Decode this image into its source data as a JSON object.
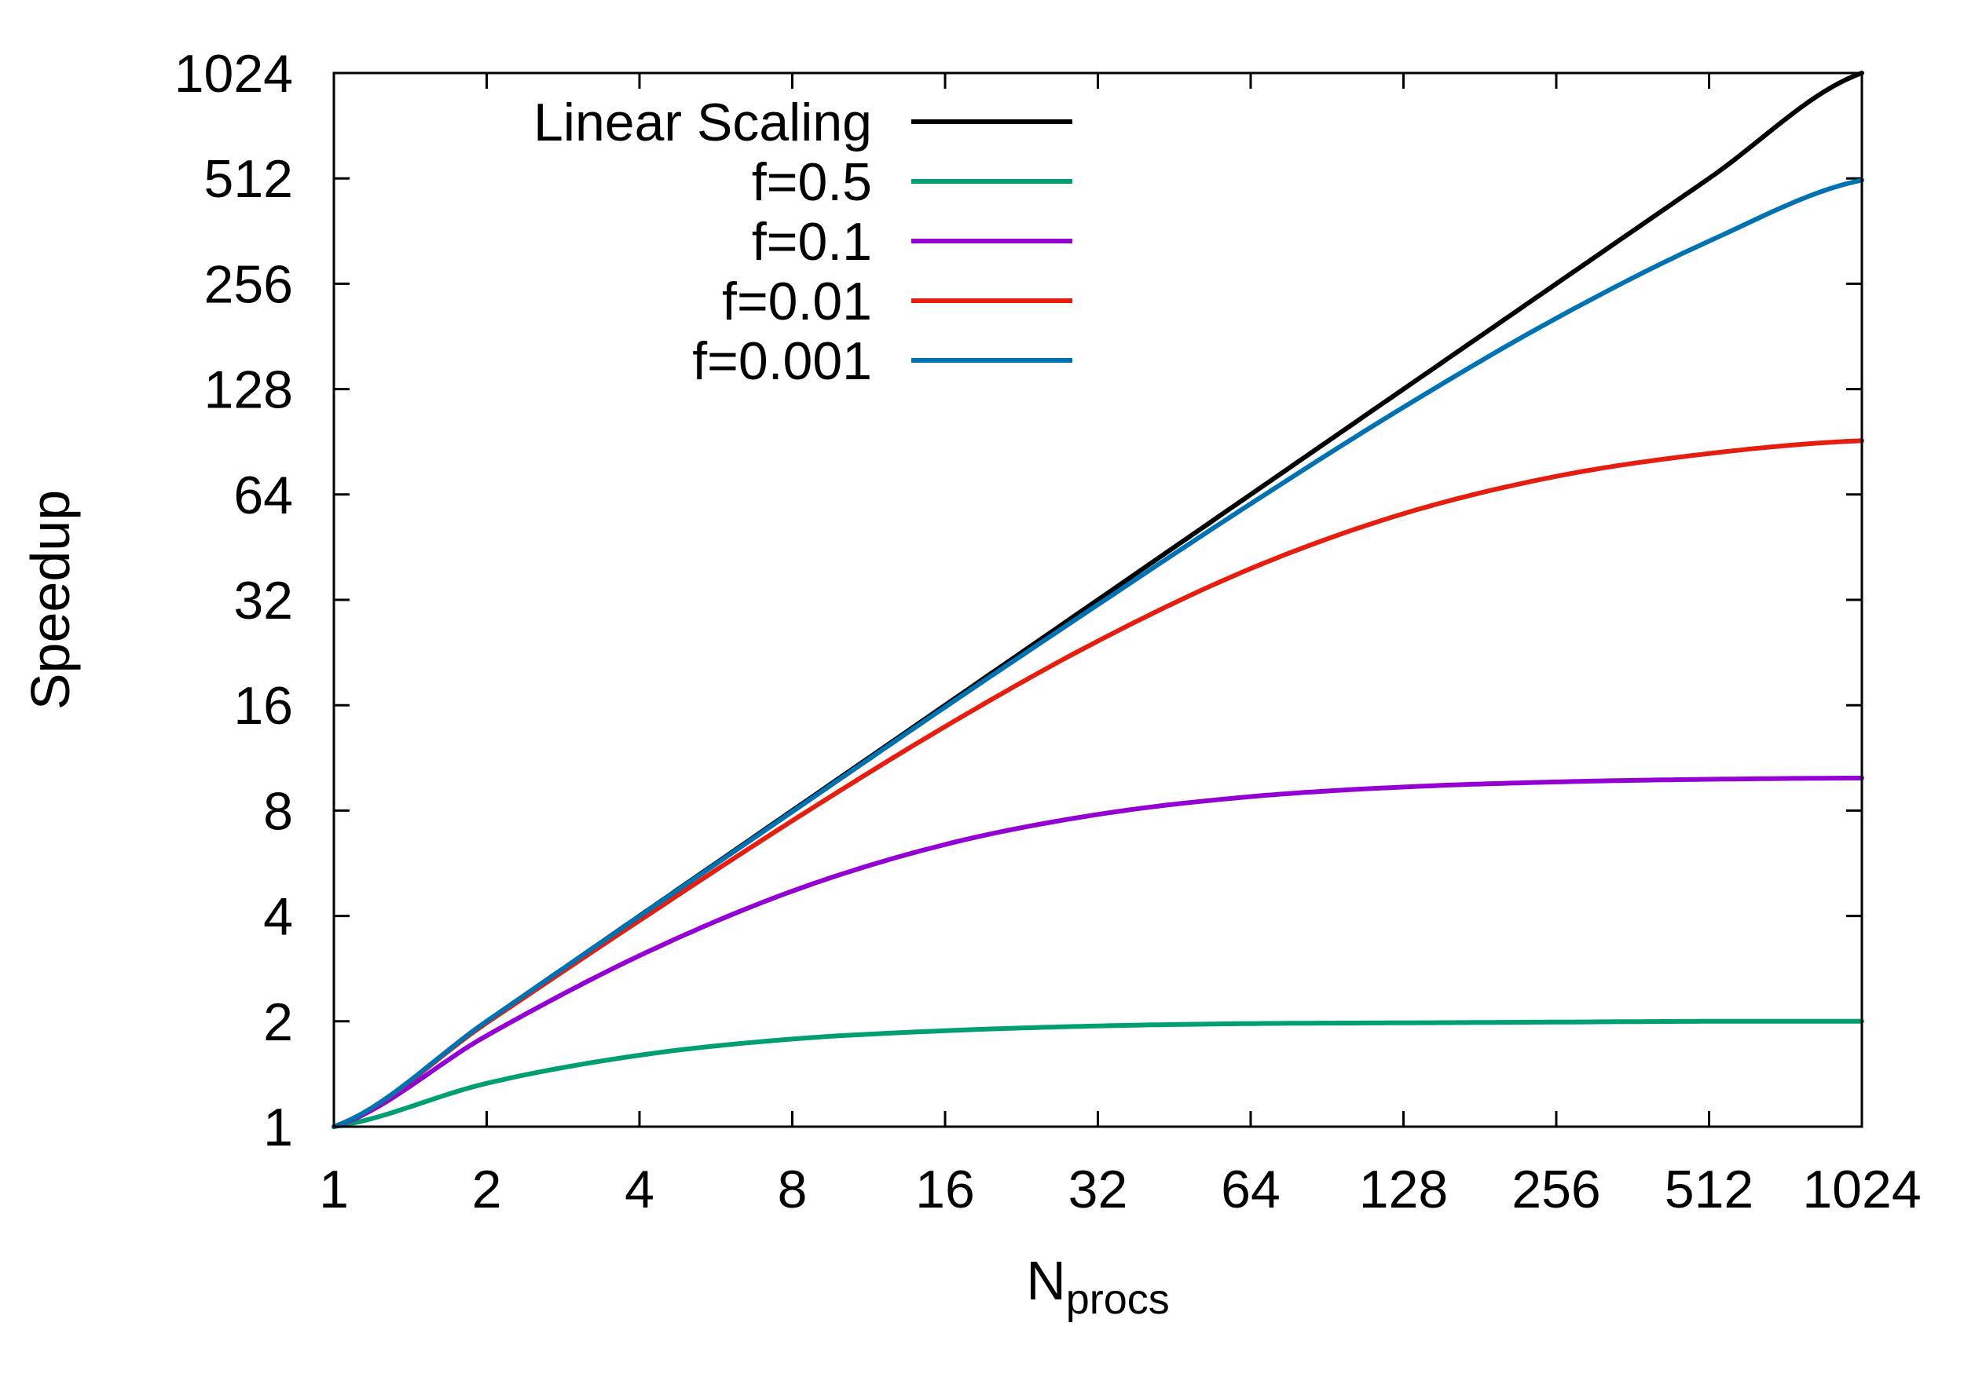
{
  "chart_data": {
    "type": "line",
    "title": "",
    "xlabel": "N",
    "xlabel_subscript": "procs",
    "ylabel": "Speedup",
    "xscale": "log2",
    "yscale": "log2",
    "xlim": [
      1,
      1024
    ],
    "ylim": [
      1,
      1024
    ],
    "xticks": [
      "1",
      "2",
      "4",
      "8",
      "16",
      "32",
      "64",
      "128",
      "256",
      "512",
      "1024"
    ],
    "yticks": [
      "1",
      "2",
      "4",
      "8",
      "16",
      "32",
      "64",
      "128",
      "256",
      "512",
      "1024"
    ],
    "grid": false,
    "legend_position": "top-left",
    "x": [
      1,
      2,
      4,
      8,
      16,
      32,
      64,
      128,
      256,
      512,
      1024
    ],
    "series": [
      {
        "name": "Linear Scaling",
        "color": "#000000",
        "values": [
          1,
          2,
          4,
          8,
          16,
          32,
          64,
          128,
          256,
          512,
          1024
        ]
      },
      {
        "name": "f=0.5",
        "color": "#009e73",
        "values": [
          1,
          1.33,
          1.6,
          1.78,
          1.88,
          1.94,
          1.97,
          1.98,
          1.99,
          2.0,
          2.0
        ]
      },
      {
        "name": "f=0.1",
        "color": "#9400d3",
        "values": [
          1,
          1.82,
          3.08,
          4.71,
          6.4,
          7.8,
          8.77,
          9.34,
          9.66,
          9.83,
          9.91
        ]
      },
      {
        "name": "f=0.01",
        "color": "#e51e10",
        "values": [
          1,
          1.98,
          3.88,
          7.48,
          13.9,
          24.4,
          39.3,
          56.4,
          72.1,
          83.8,
          91.2
        ]
      },
      {
        "name": "f=0.001",
        "color": "#0072b2",
        "values": [
          1,
          2.0,
          3.99,
          7.94,
          15.8,
          31.0,
          60.2,
          113.6,
          204.0,
          338.8,
          506.0
        ]
      }
    ]
  }
}
